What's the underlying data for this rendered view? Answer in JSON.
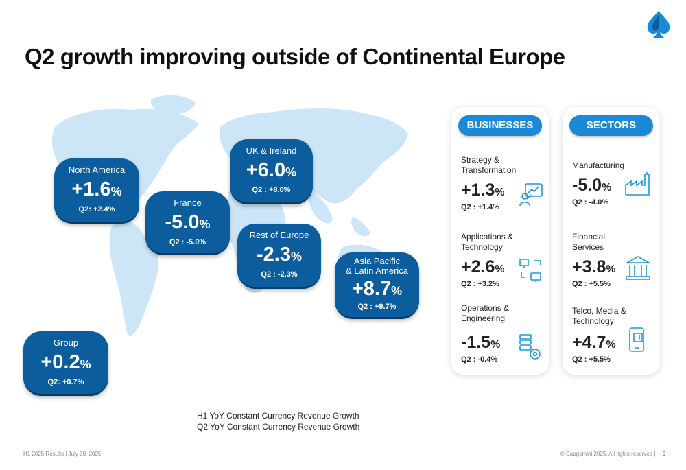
{
  "title": "Q2 growth improving outside of Continental Europe",
  "colors": {
    "bubble": "#0b5d9e",
    "header": "#1a8ad8",
    "map": "#cde6f7",
    "icon": "#1a9bd7"
  },
  "regions": {
    "north_america": {
      "label": "North America",
      "value": "+1.6",
      "pct": "%",
      "q2": "Q2: +2.4%"
    },
    "france": {
      "label": "France",
      "value": "-5.0",
      "pct": "%",
      "q2": "Q2 : -5.0%"
    },
    "uk": {
      "label": "UK & Ireland",
      "value": "+6.0",
      "pct": "%",
      "q2": "Q2 : +8.0%"
    },
    "rest_europe": {
      "label": "Rest of Europe",
      "value": "-2.3",
      "pct": "%",
      "q2": "Q2 : -2.3%"
    },
    "apac": {
      "label1": "Asia Pacific",
      "label2": "& Latin America",
      "value": "+8.7",
      "pct": "%",
      "q2": "Q2 : +9.7%"
    },
    "group": {
      "label": "Group",
      "value": "+0.2",
      "pct": "%",
      "q2": "Q2: +0.7%"
    }
  },
  "businesses": {
    "header": "BUSINESSES",
    "items": [
      {
        "name1": "Strategy &",
        "name2": "Transformation",
        "value": "+1.3",
        "pct": "%",
        "q2": "Q2 : +1.4%",
        "icon": "presenter-icon"
      },
      {
        "name1": "Applications &",
        "name2": "Technology",
        "value": "+2.6",
        "pct": "%",
        "q2": "Q2 : +3.2%",
        "icon": "monitors-icon"
      },
      {
        "name1": "Operations &",
        "name2": "Engineering",
        "value": "-1.5",
        "pct": "%",
        "q2": "Q2 : -0.4%",
        "icon": "server-gear-icon"
      }
    ]
  },
  "sectors": {
    "header": "SECTORS",
    "items": [
      {
        "name1": "Manufacturing",
        "name2": "",
        "value": "-5.0",
        "pct": "%",
        "q2": "Q2 : -4.0%",
        "icon": "factory-icon"
      },
      {
        "name1": "Financial",
        "name2": "Services",
        "value": "+3.8",
        "pct": "%",
        "q2": "Q2 : +5.5%",
        "icon": "bank-icon"
      },
      {
        "name1": "Telco, Media &",
        "name2": "Technology",
        "value": "+4.7",
        "pct": "%",
        "q2": "Q2 : +5.5%",
        "icon": "phone-icon"
      }
    ]
  },
  "legend": {
    "line1": "H1 YoY Constant Currency Revenue Growth",
    "line2": "Q2 YoY Constant Currency Revenue Growth"
  },
  "footer": {
    "left": "H1 2025 Results | July 30, 2025",
    "right": "© Capgemini 2025. All rights reserved |",
    "page": "5"
  }
}
